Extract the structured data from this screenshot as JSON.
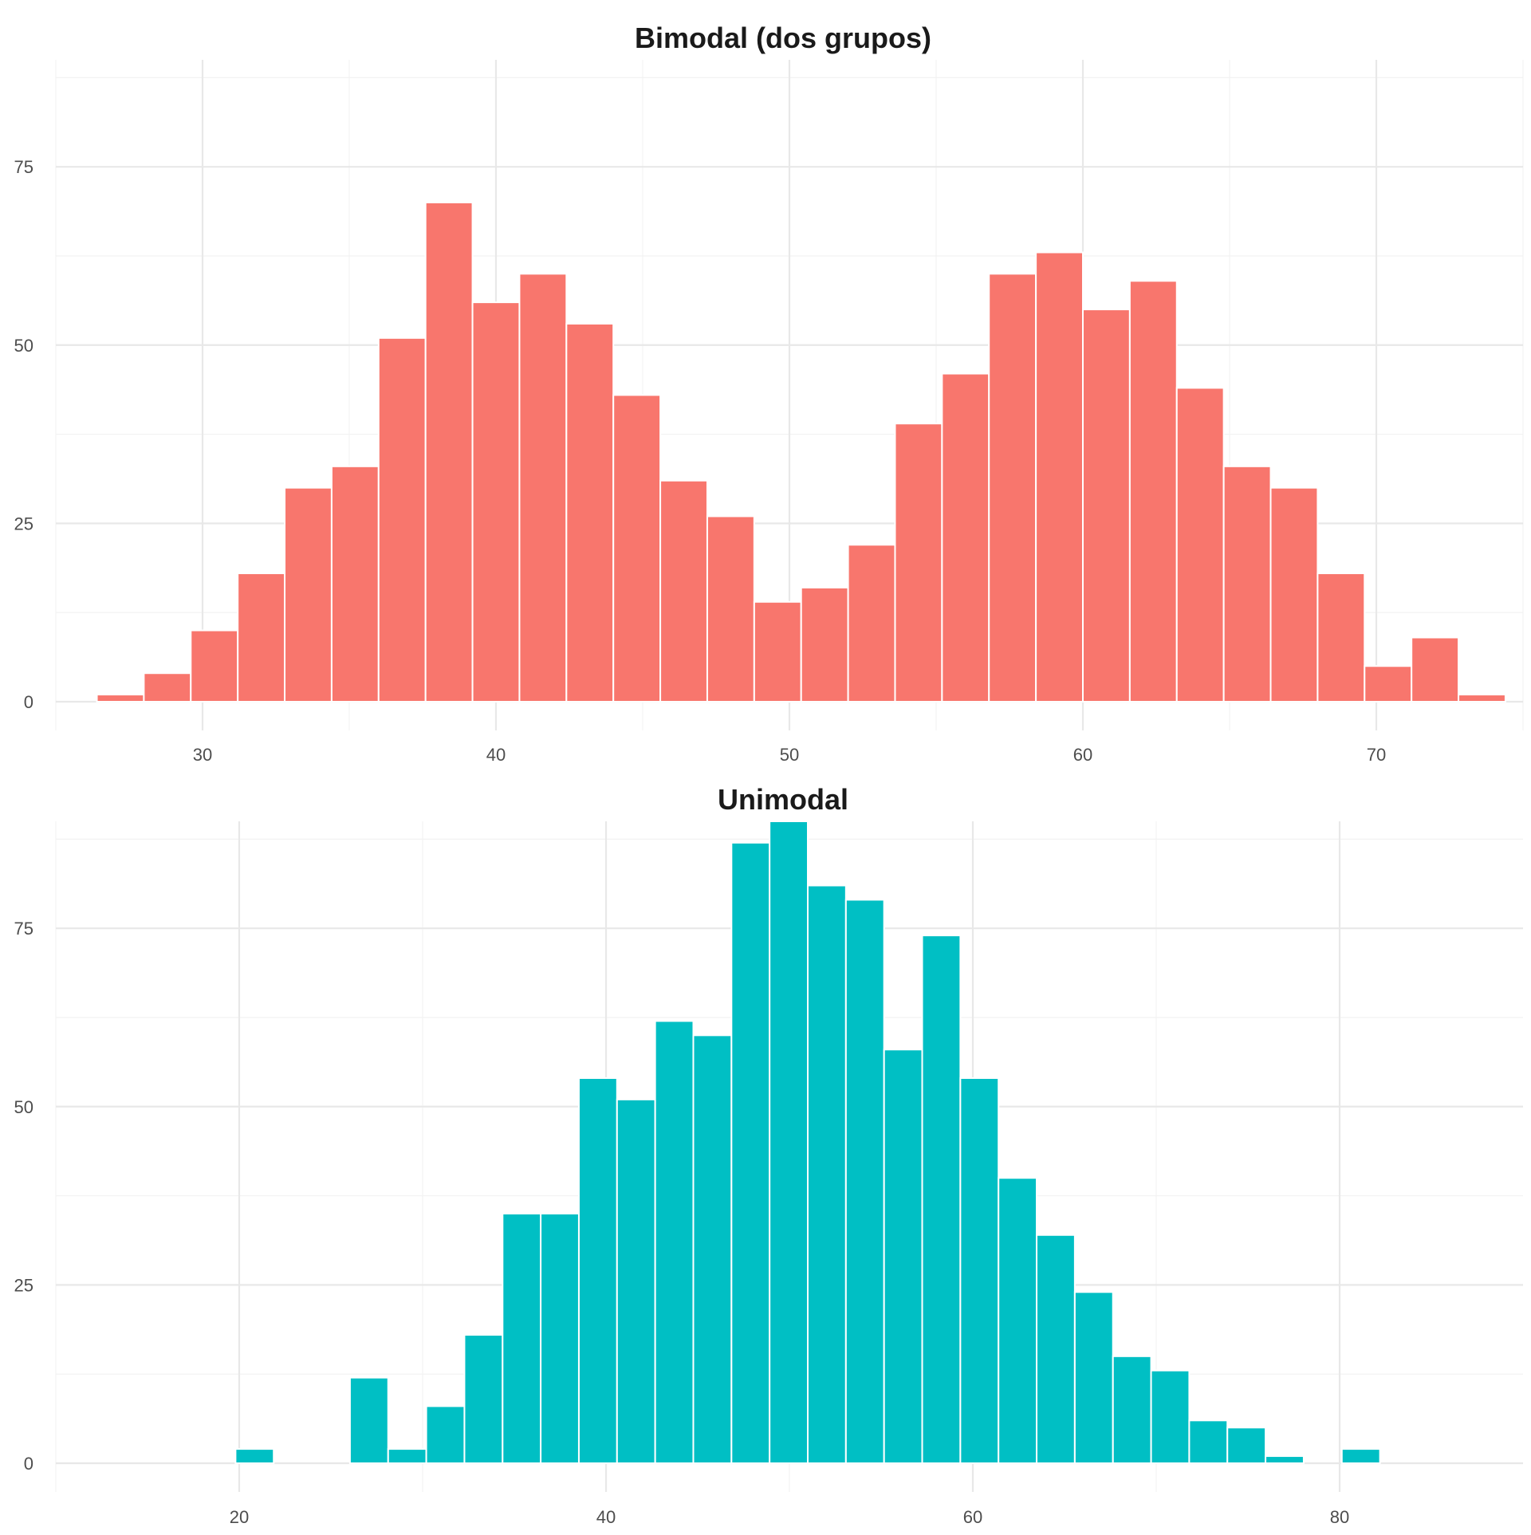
{
  "colors": {
    "bimodal_fill": "#f8766d",
    "unimodal_fill": "#00bfc4",
    "bar_border": "#ffffff"
  },
  "chart_data": [
    {
      "type": "bar",
      "title": "Bimodal (dos grupos)",
      "xlabel": "",
      "ylabel": "",
      "xlim": [
        25,
        75
      ],
      "ylim": [
        0,
        90
      ],
      "bin_start": 26.4,
      "bin_width": 1.6,
      "values": [
        1,
        4,
        10,
        18,
        30,
        33,
        51,
        70,
        56,
        60,
        53,
        43,
        31,
        26,
        14,
        16,
        22,
        39,
        46,
        60,
        63,
        55,
        59,
        44,
        33,
        30,
        18,
        5,
        9,
        1
      ],
      "x_ticks": [
        30,
        40,
        50,
        60,
        70
      ],
      "x_minor_ticks": [
        25,
        35,
        45,
        55,
        65,
        75
      ],
      "y_ticks": [
        0,
        25,
        50,
        75
      ],
      "y_minor_ticks": [
        12.5,
        37.5,
        62.5,
        87.5
      ],
      "x_tick_labels": [
        "30",
        "40",
        "50",
        "60",
        "70"
      ],
      "y_tick_labels": [
        "0",
        "25",
        "50",
        "75"
      ]
    },
    {
      "type": "bar",
      "title": "Unimodal",
      "xlabel": "",
      "ylabel": "",
      "xlim": [
        10,
        90
      ],
      "ylim": [
        0,
        90
      ],
      "bin_start": 19.8,
      "bin_width": 2.08,
      "values": [
        2,
        0,
        0,
        12,
        2,
        8,
        18,
        35,
        35,
        54,
        51,
        62,
        60,
        87,
        90,
        81,
        79,
        58,
        74,
        54,
        40,
        32,
        24,
        15,
        13,
        6,
        5,
        1,
        0,
        2
      ],
      "x_ticks": [
        20,
        40,
        60,
        80
      ],
      "x_minor_ticks": [
        10,
        30,
        50,
        70
      ],
      "y_ticks": [
        0,
        25,
        50,
        75
      ],
      "y_minor_ticks": [
        12.5,
        37.5,
        62.5,
        87.5
      ],
      "x_tick_labels": [
        "20",
        "40",
        "60",
        "80"
      ],
      "y_tick_labels": [
        "0",
        "25",
        "50",
        "75"
      ]
    }
  ]
}
